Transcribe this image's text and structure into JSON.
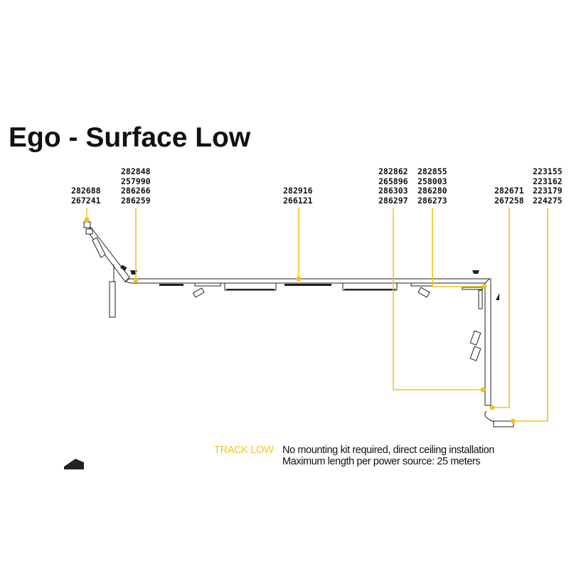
{
  "title": "Ego - Surface Low",
  "groups": [
    {
      "codes": [
        "282688",
        "267241"
      ]
    },
    {
      "codes": [
        "282848",
        "257990",
        "286266",
        "286259"
      ]
    },
    {
      "codes": [
        "282916",
        "266121"
      ]
    },
    {
      "codes": [
        "282862",
        "265896",
        "286303",
        "286297"
      ]
    },
    {
      "codes": [
        "282855",
        "258003",
        "286280",
        "286273"
      ]
    },
    {
      "codes": [
        "282671",
        "267258"
      ]
    },
    {
      "codes": [
        "223155",
        "223162",
        "223179",
        "224275"
      ]
    }
  ],
  "notes": {
    "tag": "TRACK LOW",
    "line1": "No mounting kit required, direct ceiling installation",
    "line2": "Maximum length per power source: 25 meters"
  },
  "colors": {
    "accent": "#f2c51a",
    "ink": "#111111"
  }
}
